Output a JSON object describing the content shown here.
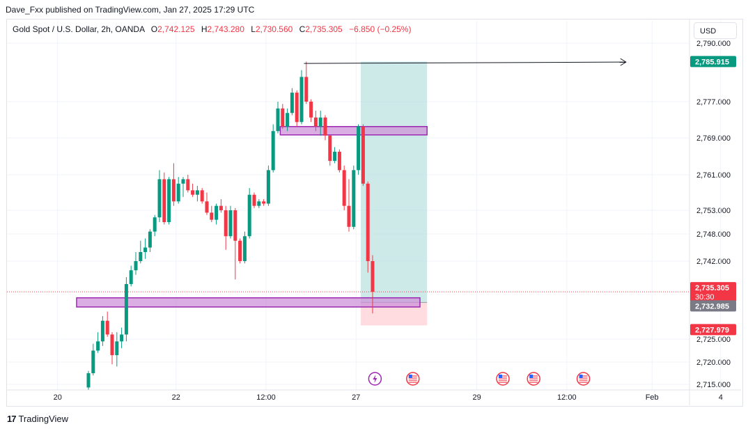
{
  "header": {
    "credit": "Dave_Fxx published on TradingView.com, Jan 27, 2025 17:29 UTC"
  },
  "legend": {
    "symbol": "Gold Spot / U.S. Dollar, 2h, OANDA",
    "o_label": "O",
    "o_value": "2,742.125",
    "h_label": "H",
    "h_value": "2,743.280",
    "l_label": "L",
    "l_value": "2,730.560",
    "c_label": "C",
    "c_value": "2,735.305",
    "change": "−6.850 (−0.25%)"
  },
  "currency_button": "USD",
  "brand": "TradingView",
  "colors": {
    "up": "#089981",
    "down": "#f23645",
    "zone_fill": "#ce93d8",
    "zone_stroke": "#9c27b0",
    "target_fill": "#b2dfdb",
    "stop_fill": "#ffcdd2",
    "target_label_bg": "#089981",
    "price_label_bg": "#f23645",
    "entry_label_bg": "#787b86"
  },
  "chart_data": {
    "type": "candlestick",
    "y_ticks": [
      2715,
      2720,
      2725,
      2742,
      2748,
      2753,
      2761,
      2769,
      2777,
      2790
    ],
    "y_tick_labels": [
      "2,715.000",
      "2,720.000",
      "2,725.000",
      "2,742.000",
      "2,748.000",
      "2,753.000",
      "2,761.000",
      "2,769.000",
      "2,777.000",
      "2,790.000"
    ],
    "x_tick_labels": [
      {
        "label": "20",
        "bar": -6.5
      },
      {
        "label": "22",
        "bar": 18.5
      },
      {
        "label": "12:00",
        "bar": 37.5
      },
      {
        "label": "27",
        "bar": 56.5
      },
      {
        "label": "29",
        "bar": 82
      },
      {
        "label": "12:00",
        "bar": 101
      },
      {
        "label": "Feb",
        "bar": 119
      },
      {
        "label": "4",
        "bar": 133.5
      }
    ],
    "candles": [
      [
        2714.3,
        2718.0,
        2713.8,
        2717.5
      ],
      [
        2717.5,
        2724.0,
        2717.0,
        2722.5
      ],
      [
        2722.5,
        2726.5,
        2722.0,
        2724.5
      ],
      [
        2724.5,
        2730.0,
        2723.5,
        2729.0
      ],
      [
        2729.0,
        2731.0,
        2725.5,
        2726.0
      ],
      [
        2726.0,
        2726.5,
        2719.5,
        2721.5
      ],
      [
        2721.5,
        2726.5,
        2719.0,
        2724.5
      ],
      [
        2724.5,
        2727.5,
        2723.0,
        2726.0
      ],
      [
        2726.0,
        2738.5,
        2724.5,
        2737.0
      ],
      [
        2737.0,
        2741.0,
        2736.5,
        2740.0
      ],
      [
        2740.0,
        2744.0,
        2739.0,
        2742.0
      ],
      [
        2742.0,
        2746.5,
        2741.5,
        2744.0
      ],
      [
        2744.0,
        2747.0,
        2742.5,
        2745.0
      ],
      [
        2745.0,
        2749.0,
        2744.0,
        2748.5
      ],
      [
        2748.5,
        2752.0,
        2747.5,
        2751.5
      ],
      [
        2751.5,
        2762.0,
        2750.5,
        2760.0
      ],
      [
        2760.0,
        2761.5,
        2750.0,
        2750.5
      ],
      [
        2750.5,
        2760.5,
        2750.0,
        2760.0
      ],
      [
        2760.0,
        2763.5,
        2754.0,
        2755.0
      ],
      [
        2755.0,
        2760.5,
        2754.5,
        2759.0
      ],
      [
        2759.0,
        2760.5,
        2756.0,
        2760.0
      ],
      [
        2760.0,
        2761.0,
        2757.0,
        2757.5
      ],
      [
        2757.5,
        2759.0,
        2756.0,
        2756.5
      ],
      [
        2756.5,
        2758.5,
        2755.0,
        2757.5
      ],
      [
        2757.5,
        2758.0,
        2754.5,
        2755.0
      ],
      [
        2755.0,
        2757.0,
        2752.0,
        2752.5
      ],
      [
        2752.5,
        2754.0,
        2750.5,
        2751.0
      ],
      [
        2751.0,
        2754.5,
        2750.0,
        2754.0
      ],
      [
        2754.0,
        2755.5,
        2752.5,
        2753.0
      ],
      [
        2753.0,
        2754.0,
        2744.5,
        2747.5
      ],
      [
        2747.5,
        2754.0,
        2747.0,
        2753.0
      ],
      [
        2753.0,
        2753.5,
        2738.0,
        2746.5
      ],
      [
        2746.5,
        2747.0,
        2741.5,
        2742.0
      ],
      [
        2742.0,
        2748.5,
        2741.5,
        2747.5
      ],
      [
        2747.5,
        2758.0,
        2747.0,
        2756.5
      ],
      [
        2756.5,
        2757.0,
        2753.5,
        2754.0
      ],
      [
        2754.0,
        2755.5,
        2753.5,
        2755.0
      ],
      [
        2755.0,
        2755.5,
        2754.0,
        2754.5
      ],
      [
        2754.5,
        2763.0,
        2754.0,
        2762.0
      ],
      [
        2762.0,
        2772.0,
        2761.5,
        2770.5
      ],
      [
        2770.5,
        2777.0,
        2770.0,
        2775.5
      ],
      [
        2775.5,
        2776.5,
        2771.0,
        2771.5
      ],
      [
        2771.5,
        2775.5,
        2770.5,
        2774.5
      ],
      [
        2774.5,
        2780.0,
        2774.0,
        2779.0
      ],
      [
        2779.0,
        2779.5,
        2771.5,
        2772.5
      ],
      [
        2772.5,
        2784.0,
        2772.0,
        2782.5
      ],
      [
        2782.5,
        2785.9,
        2776.5,
        2777.0
      ],
      [
        2777.0,
        2777.5,
        2772.5,
        2773.5
      ],
      [
        2773.5,
        2775.0,
        2770.5,
        2771.5
      ],
      [
        2771.5,
        2775.0,
        2769.5,
        2773.5
      ],
      [
        2773.5,
        2774.0,
        2768.5,
        2769.5
      ],
      [
        2769.5,
        2769.5,
        2763.0,
        2764.0
      ],
      [
        2764.0,
        2767.0,
        2763.5,
        2766.0
      ],
      [
        2766.0,
        2766.5,
        2761.5,
        2762.0
      ],
      [
        2762.0,
        2763.0,
        2753.0,
        2754.0
      ],
      [
        2754.0,
        2760.0,
        2748.5,
        2749.5
      ],
      [
        2749.5,
        2763.0,
        2749.0,
        2762.0
      ],
      [
        2762.0,
        2772.0,
        2761.0,
        2771.5
      ],
      [
        2771.5,
        2772.0,
        2758.5,
        2759.0
      ],
      [
        2759.0,
        2759.5,
        2739.5,
        2742.0
      ],
      [
        2742.0,
        2743.3,
        2730.6,
        2735.3
      ]
    ],
    "annotations": {
      "upper_zone": {
        "y_top": 2771.5,
        "y_bottom": 2770.0,
        "bar_start": 40.5,
        "bar_end": 71.5
      },
      "lower_zone": {
        "y_top": 2734.0,
        "y_bottom": 2732.0,
        "bar_start": -2.5,
        "bar_end": 70
      },
      "position": {
        "bar_start": 57.5,
        "bar_end": 71.5,
        "entry": 2732.985,
        "target": 2785.915,
        "stop": 2727.979
      },
      "trend_line": {
        "bar_start": 45.5,
        "y_start": 2785.5,
        "bar_end": 113.5,
        "y_end": 2785.8
      }
    },
    "current_price": 2735.305,
    "price_labels": [
      {
        "value": 2785.915,
        "text": "2,785.915",
        "kind": "target"
      },
      {
        "value": 2735.305,
        "text": "2,735.305",
        "sub": "30:30",
        "kind": "last"
      },
      {
        "value": 2732.985,
        "text": "2,732.985",
        "kind": "entry"
      },
      {
        "value": 2727.979,
        "text": "2,727.979",
        "kind": "stop"
      }
    ],
    "event_markers": [
      {
        "bar": 60.5,
        "icon": "lightning-icon"
      },
      {
        "bar": 68.5,
        "icon": "us-flag-icon"
      },
      {
        "bar": 87.5,
        "icon": "us-flag-icon"
      },
      {
        "bar": 94,
        "icon": "us-flag-icon"
      },
      {
        "bar": 104.5,
        "icon": "us-flag-icon"
      }
    ]
  }
}
